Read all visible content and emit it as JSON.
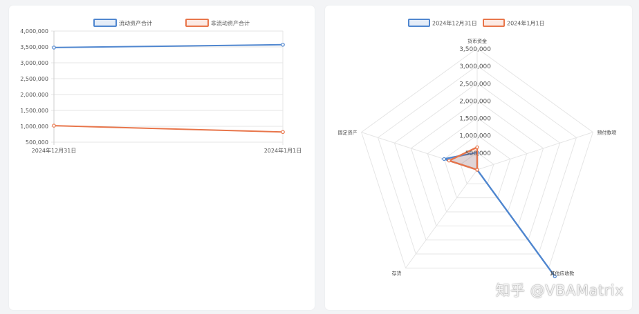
{
  "colors": {
    "series_blue": "#4f86cf",
    "series_orange": "#e8754a",
    "grid": "#e5e5e5"
  },
  "chart_data": [
    {
      "type": "line",
      "categories": [
        "2024年12月31日",
        "2024年1月1日"
      ],
      "series": [
        {
          "name": "流动资产合计",
          "values": [
            3480000,
            3570000
          ],
          "color": "#4f86cf"
        },
        {
          "name": "非流动资产合计",
          "values": [
            1020000,
            820000
          ],
          "color": "#e8754a"
        }
      ],
      "ylim": [
        500000,
        4000000
      ],
      "yticks": [
        "4,000,000",
        "3,500,000",
        "3,000,000",
        "2,500,000",
        "2,000,000",
        "1,500,000",
        "1,000,000",
        "500,000"
      ],
      "legend": "top-center",
      "grid": true
    },
    {
      "type": "radar",
      "axes": [
        "货币资金",
        "预付款项",
        "其他应收款",
        "存货",
        "固定资产"
      ],
      "series": [
        {
          "name": "2024年12月31日",
          "values": [
            500000,
            0,
            3800000,
            0,
            1000000
          ],
          "color": "#4f86cf"
        },
        {
          "name": "2024年1月1日",
          "values": [
            650000,
            0,
            0,
            0,
            850000
          ],
          "color": "#e8754a"
        }
      ],
      "rmax": 3500000,
      "rticks": [
        "500,000",
        "1,000,000",
        "1,500,000",
        "2,000,000",
        "2,500,000",
        "3,000,000",
        "3,500,000"
      ],
      "legend": "top-center",
      "grid": true
    }
  ],
  "watermark": "知乎 @VBAMatrix"
}
